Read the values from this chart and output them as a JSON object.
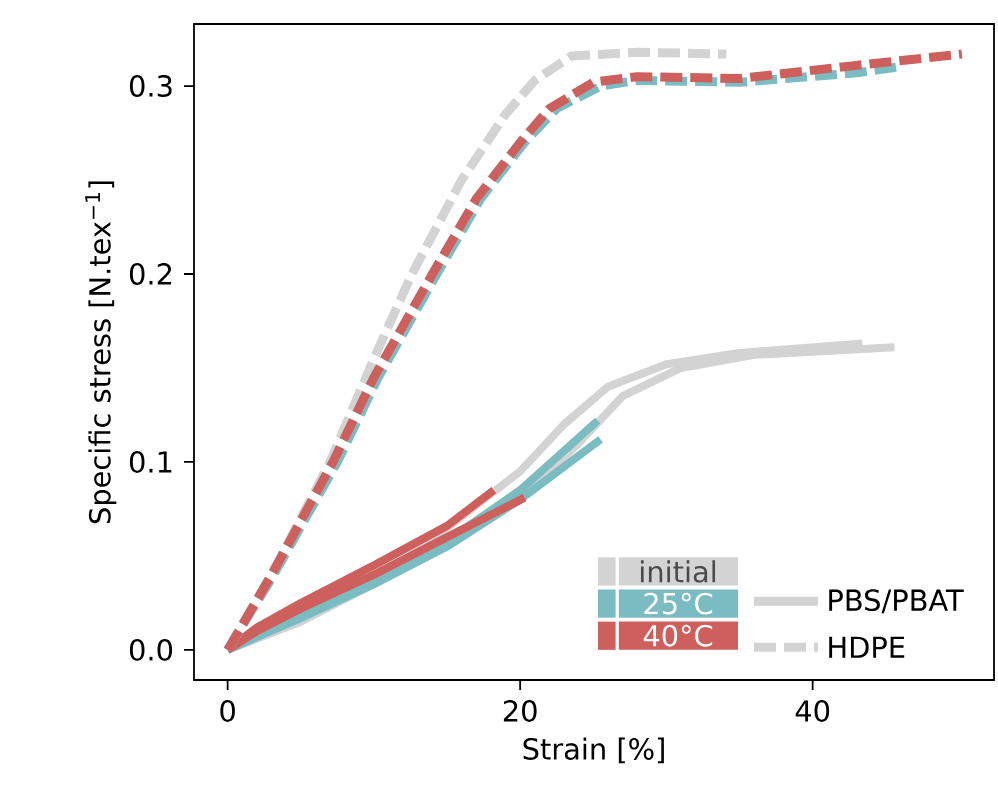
{
  "chart_data": {
    "type": "line",
    "xlabel": "Strain [%]",
    "ylabel": "Specific stress [N.tex$^{−1}$]",
    "xlim": [
      -2.3,
      52.4
    ],
    "ylim": [
      -0.016,
      0.333
    ],
    "xticks": [
      0,
      20,
      40
    ],
    "yticks": [
      {
        "value": 0,
        "label": "0.0"
      },
      {
        "value": 0.1,
        "label": "0.1"
      },
      {
        "value": 0.2,
        "label": "0.2"
      },
      {
        "value": 0.3,
        "label": "0.3"
      }
    ],
    "legend": "bottom right",
    "annotations": [
      "PBS/PBAT",
      "HDPE"
    ],
    "series": [
      {
        "name": "initial",
        "color": "#d3d3d3",
        "line_style": "solid",
        "x": [
          0,
          5,
          10,
          15,
          20,
          23,
          26,
          30,
          35,
          43.4
        ],
        "values": [
          0,
          0.02,
          0.04,
          0.065,
          0.095,
          0.12,
          0.14,
          0.152,
          0.158,
          0.163
        ]
      },
      {
        "color": "#d3d3d3",
        "line_style": "solid",
        "x": [
          0,
          5,
          10,
          15,
          20,
          24,
          27,
          31,
          36,
          45.6
        ],
        "values": [
          0,
          0.015,
          0.035,
          0.055,
          0.08,
          0.11,
          0.135,
          0.15,
          0.157,
          0.161
        ]
      },
      {
        "name": "25°C",
        "color": "#7bbcc2",
        "line_style": "solid",
        "x": [
          0,
          5,
          10,
          15,
          20,
          25.3
        ],
        "values": [
          0,
          0.02,
          0.038,
          0.058,
          0.085,
          0.122
        ]
      },
      {
        "color": "#7bbcc2",
        "line_style": "solid",
        "x": [
          0,
          5,
          10,
          15,
          20,
          25.5
        ],
        "values": [
          0,
          0.017,
          0.035,
          0.055,
          0.08,
          0.112
        ]
      },
      {
        "name": "40°C",
        "color": "#cd5f5c",
        "line_style": "solid",
        "x": [
          0,
          2,
          5,
          10,
          15,
          18.2
        ],
        "values": [
          0,
          0.012,
          0.025,
          0.045,
          0.066,
          0.085
        ]
      },
      {
        "color": "#cd5f5c",
        "line_style": "solid",
        "x": [
          0,
          2,
          5,
          10,
          15,
          20.3
        ],
        "values": [
          0,
          0.01,
          0.022,
          0.04,
          0.06,
          0.081
        ]
      },
      {
        "color": "#d3d3d3",
        "line_style": "dashed",
        "x": [
          0,
          3,
          7,
          10,
          12.6,
          16,
          19,
          21,
          23.5,
          28,
          34.1
        ],
        "values": [
          0,
          0.04,
          0.1,
          0.155,
          0.2,
          0.25,
          0.285,
          0.303,
          0.316,
          0.318,
          0.317
        ]
      },
      {
        "color": "#7bbcc2",
        "line_style": "dashed",
        "x": [
          0,
          3,
          7.5,
          10.3,
          14.3,
          17.3,
          20.3,
          22.5,
          25.5,
          28,
          35,
          43,
          45.7
        ],
        "values": [
          0,
          0.038,
          0.1,
          0.145,
          0.2,
          0.24,
          0.27,
          0.288,
          0.3,
          0.303,
          0.302,
          0.307,
          0.31
        ]
      },
      {
        "color": "#cd5f5c",
        "line_style": "dashed",
        "x": [
          0,
          3,
          7.2,
          10,
          14,
          17,
          20,
          22,
          25,
          28,
          35,
          43,
          50.2
        ],
        "values": [
          0,
          0.04,
          0.1,
          0.145,
          0.2,
          0.24,
          0.27,
          0.288,
          0.302,
          0.305,
          0.304,
          0.311,
          0.317
        ]
      }
    ]
  }
}
